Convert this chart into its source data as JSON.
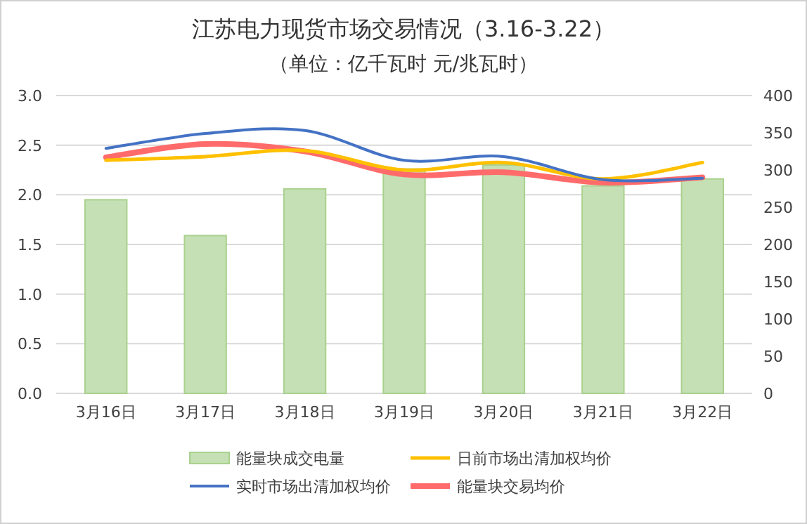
{
  "chart_data": {
    "type": "bar",
    "title": "江苏电力现货市场交易情况（3.16-3.22）",
    "subtitle": "（单位：亿千瓦时 元/兆瓦时）",
    "categories": [
      "3月16日",
      "3月17日",
      "3月18日",
      "3月19日",
      "3月20日",
      "3月21日",
      "3月22日"
    ],
    "series": [
      {
        "name": "能量块成交电量",
        "color": "#c5e0b4",
        "values": [
          1.95,
          1.59,
          2.06,
          2.26,
          2.3,
          2.09,
          2.16
        ]
      },
      {
        "name": "日前市场出清加权均价",
        "type": "line",
        "axis": "y2",
        "color": "#ffc000",
        "values": [
          313,
          318,
          326,
          300,
          310,
          288,
          310
        ]
      },
      {
        "name": "实时市场出清加权均价",
        "type": "line",
        "axis": "y2",
        "color": "#4472c4",
        "values": [
          329,
          349,
          353,
          313,
          318,
          287,
          289
        ]
      },
      {
        "name": "能量块交易均价",
        "type": "line",
        "axis": "y2",
        "color": "#ff6b6b",
        "values": [
          317,
          335,
          325,
          294,
          297,
          283,
          290
        ]
      }
    ],
    "ylim": [
      0,
      3
    ],
    "yticks": [
      {
        "value": 0,
        "label": "0.0"
      },
      0.5,
      {
        "value": 1,
        "label": "1.0"
      },
      1.5,
      {
        "value": 2,
        "label": "2.0"
      },
      2.5,
      {
        "value": 3,
        "label": "3.0"
      }
    ],
    "y2lim": [
      0,
      400
    ],
    "y2ticks": [
      0,
      50,
      100,
      150,
      200,
      250,
      300,
      350,
      400
    ],
    "grid": "y",
    "legend": "bottom"
  }
}
